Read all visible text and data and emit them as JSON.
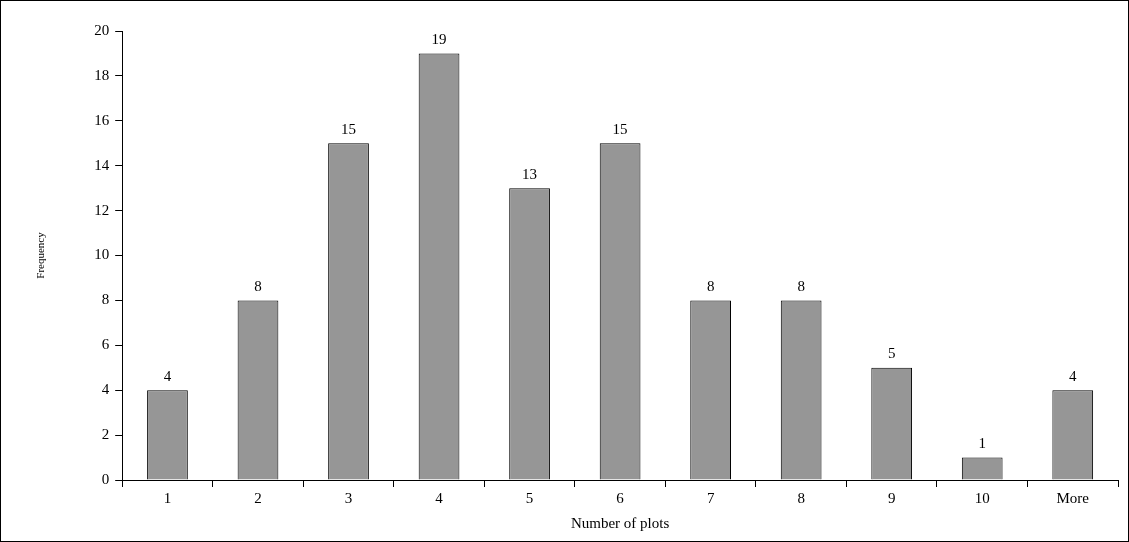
{
  "chart_data": {
    "type": "bar",
    "xlabel": "Number of plots",
    "ylabel": "Frequency",
    "categories": [
      "1",
      "2",
      "3",
      "4",
      "5",
      "6",
      "7",
      "8",
      "9",
      "10",
      "More"
    ],
    "values": [
      4,
      8,
      15,
      19,
      13,
      15,
      8,
      8,
      5,
      1,
      4
    ],
    "color": "#969696",
    "ylim": [
      0,
      20
    ],
    "yticks": [
      0,
      2,
      4,
      6,
      8,
      10,
      12,
      14,
      16,
      18,
      20
    ],
    "data_labels": true,
    "grid": false,
    "legend": false
  }
}
